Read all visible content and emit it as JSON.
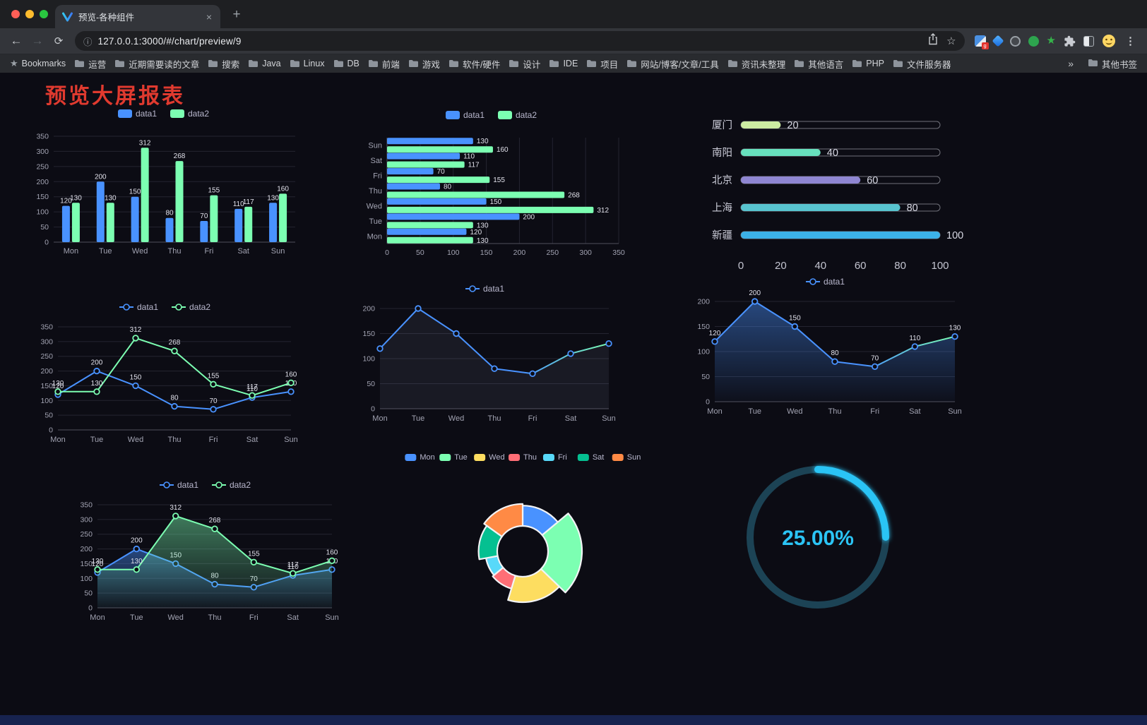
{
  "browser": {
    "tab_title": "预览-各种组件",
    "new_tab_label": "+",
    "url": "127.0.0.1:3000/#/chart/preview/9",
    "bookmarks_label": "Bookmarks",
    "bookmarks": [
      "运营",
      "近期需要读的文章",
      "搜索",
      "Java",
      "Linux",
      "DB",
      "前端",
      "游戏",
      "软件/硬件",
      "设计",
      "IDE",
      "项目",
      "网站/博客/文章/工具",
      "资讯未整理",
      "其他语言",
      "PHP",
      "文件服务器"
    ],
    "bookmarks_overflow": "»",
    "other_bookmarks": "其他书签"
  },
  "page": {
    "title": "预览大屏报表",
    "title_color": "#e03a2f"
  },
  "chart_data": [
    {
      "id": "bar-vertical",
      "type": "bar",
      "categories": [
        "Mon",
        "Tue",
        "Wed",
        "Thu",
        "Fri",
        "Sat",
        "Sun"
      ],
      "series": [
        {
          "name": "data1",
          "color": "#4992ff",
          "values": [
            120,
            200,
            150,
            80,
            70,
            110,
            130
          ]
        },
        {
          "name": "data2",
          "color": "#7cffb2",
          "values": [
            130,
            130,
            312,
            268,
            155,
            117,
            160
          ]
        }
      ],
      "ylim": [
        0,
        350
      ],
      "ytick": 50,
      "legend_position": "top",
      "grid": true
    },
    {
      "id": "bar-horizontal",
      "type": "bar-h",
      "categories": [
        "Mon",
        "Tue",
        "Wed",
        "Thu",
        "Fri",
        "Sat",
        "Sun"
      ],
      "series": [
        {
          "name": "data1",
          "color": "#4992ff",
          "values": [
            120,
            200,
            150,
            80,
            70,
            110,
            130
          ]
        },
        {
          "name": "data2",
          "color": "#7cffb2",
          "values": [
            130,
            130,
            312,
            268,
            155,
            117,
            160
          ]
        }
      ],
      "xlim": [
        0,
        350
      ],
      "xtick": 50,
      "legend_position": "top",
      "grid": true
    },
    {
      "id": "progress",
      "type": "progress",
      "max": 100,
      "ticks": [
        0,
        20,
        40,
        60,
        80,
        100
      ],
      "items": [
        {
          "label": "厦门",
          "value": 20,
          "color": "#cdeca3"
        },
        {
          "label": "南阳",
          "value": 40,
          "color": "#67e0bd"
        },
        {
          "label": "北京",
          "value": 60,
          "color": "#8f86d2"
        },
        {
          "label": "上海",
          "value": 80,
          "color": "#58c4cf"
        },
        {
          "label": "新疆",
          "value": 100,
          "color": "#3cb1e8"
        }
      ]
    },
    {
      "id": "line-dual",
      "type": "line",
      "categories": [
        "Mon",
        "Tue",
        "Wed",
        "Thu",
        "Fri",
        "Sat",
        "Sun"
      ],
      "series": [
        {
          "name": "data1",
          "color": "#4992ff",
          "values": [
            120,
            200,
            150,
            80,
            70,
            110,
            130
          ]
        },
        {
          "name": "data2",
          "color": "#7cffb2",
          "values": [
            130,
            130,
            312,
            268,
            155,
            117,
            160
          ]
        }
      ],
      "ylim": [
        0,
        350
      ],
      "ytick": 50,
      "labels": true,
      "legend_position": "top",
      "grid": true
    },
    {
      "id": "line-single",
      "type": "line",
      "categories": [
        "Mon",
        "Tue",
        "Wed",
        "Thu",
        "Fri",
        "Sat",
        "Sun"
      ],
      "series": [
        {
          "name": "data1",
          "color": "#4992ff",
          "values": [
            120,
            200,
            150,
            80,
            70,
            110,
            130
          ]
        }
      ],
      "ylim": [
        0,
        200
      ],
      "ytick": 50,
      "labels": false,
      "line_gradient": [
        "#4992ff",
        "#7cffb2"
      ],
      "soft_area": true,
      "legend_position": "top",
      "grid": true
    },
    {
      "id": "line-area",
      "type": "line",
      "categories": [
        "Mon",
        "Tue",
        "Wed",
        "Thu",
        "Fri",
        "Sat",
        "Sun"
      ],
      "series": [
        {
          "name": "data1",
          "color": "#4992ff",
          "values": [
            120,
            200,
            150,
            80,
            70,
            110,
            130
          ]
        }
      ],
      "ylim": [
        0,
        200
      ],
      "ytick": 50,
      "labels": true,
      "area": true,
      "line_gradient": [
        "#4992ff",
        "#7cffb2"
      ],
      "legend_position": "top",
      "grid": true
    },
    {
      "id": "line-area-dual",
      "type": "line",
      "categories": [
        "Mon",
        "Tue",
        "Wed",
        "Thu",
        "Fri",
        "Sat",
        "Sun"
      ],
      "series": [
        {
          "name": "data1",
          "color": "#4992ff",
          "values": [
            120,
            200,
            150,
            80,
            70,
            110,
            130
          ]
        },
        {
          "name": "data2",
          "color": "#7cffb2",
          "values": [
            130,
            130,
            312,
            268,
            155,
            117,
            160
          ]
        }
      ],
      "ylim": [
        0,
        350
      ],
      "ytick": 50,
      "labels": true,
      "area": true,
      "legend_position": "top",
      "grid": true
    },
    {
      "id": "rose",
      "type": "rose",
      "categories": [
        "Mon",
        "Tue",
        "Wed",
        "Thu",
        "Fri",
        "Sat",
        "Sun"
      ],
      "values": [
        120,
        200,
        150,
        80,
        70,
        110,
        130
      ],
      "colors": [
        "#4992ff",
        "#7cffb2",
        "#fddd60",
        "#ff6e76",
        "#58d9f9",
        "#05c091",
        "#ff8a45"
      ],
      "legend_position": "top"
    },
    {
      "id": "gauge",
      "type": "gauge",
      "value": 25,
      "label": "25.00%",
      "color": "#2bc4f5",
      "track_color": "#1c4355"
    }
  ]
}
